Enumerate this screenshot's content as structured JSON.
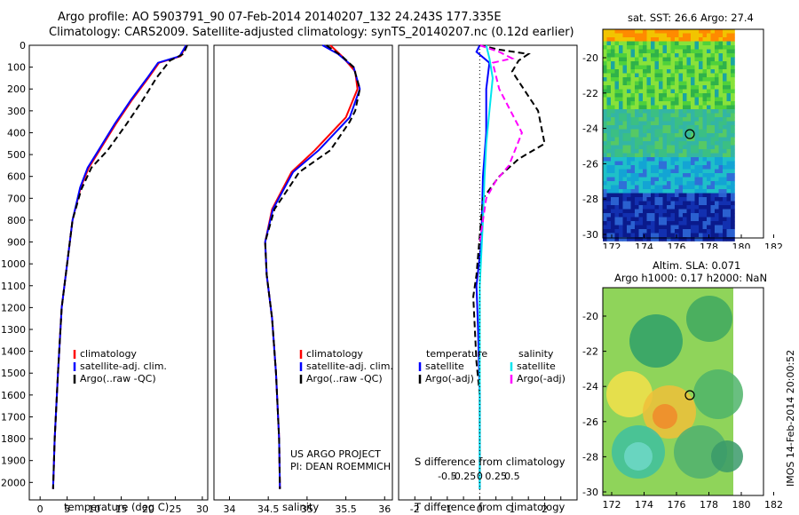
{
  "header": {
    "line1": "Argo profile: AO 5903791_90 07-Feb-2014 20140207_132 24.243S 177.335E",
    "line2": "Climatology: CARS2009. Satellite-adjusted climatology: synTS_20140207.nc (0.12d earlier)"
  },
  "colors": {
    "climatology": "#ff0000",
    "satellite": "#0000ff",
    "argo": "#000000",
    "sat_salt": "#00e5ee",
    "argo_salt": "#ff00ff"
  },
  "depth_axis": {
    "ticks": [
      0,
      100,
      200,
      300,
      400,
      500,
      600,
      700,
      800,
      900,
      1000,
      1100,
      1200,
      1300,
      1400,
      1500,
      1600,
      1700,
      1800,
      1900,
      2000
    ],
    "ylim": [
      0,
      2080
    ]
  },
  "credit": {
    "line1": "US ARGO PROJECT",
    "line2": "PI: DEAN ROEMMICH"
  },
  "footer": {
    "timestamp": "IMOS 14-Feb-2014 20:00:52"
  },
  "chart_data": [
    {
      "type": "line",
      "xlabel": "temperature (deg C)",
      "xlim": [
        -2,
        31
      ],
      "xticks": [
        0,
        5,
        10,
        15,
        20,
        25,
        30
      ],
      "legend": {
        "position": "bottom-center",
        "entries": [
          "climatology",
          "satellite-adj. clim.",
          "Argo(..raw -QC)"
        ]
      },
      "series": [
        {
          "name": "climatology",
          "color": "red",
          "points": [
            [
              27,
              0
            ],
            [
              26,
              50
            ],
            [
              22,
              80
            ],
            [
              20,
              150
            ],
            [
              17,
              250
            ],
            [
              14,
              360
            ],
            [
              11,
              480
            ],
            [
              9,
              560
            ],
            [
              7.5,
              650
            ],
            [
              6,
              800
            ],
            [
              5,
              1000
            ],
            [
              4,
              1200
            ],
            [
              3.3,
              1500
            ],
            [
              2.7,
              1800
            ],
            [
              2.4,
              2030
            ]
          ]
        },
        {
          "name": "satellite-adj. clim.",
          "color": "blue",
          "points": [
            [
              27,
              0
            ],
            [
              25.8,
              50
            ],
            [
              21.8,
              80
            ],
            [
              19.8,
              150
            ],
            [
              16.8,
              250
            ],
            [
              13.8,
              360
            ],
            [
              10.8,
              480
            ],
            [
              8.8,
              560
            ],
            [
              7.4,
              650
            ],
            [
              6,
              800
            ],
            [
              5,
              1000
            ],
            [
              4,
              1200
            ],
            [
              3.3,
              1500
            ],
            [
              2.7,
              1800
            ],
            [
              2.4,
              2030
            ]
          ]
        },
        {
          "name": "Argo(..raw -QC)",
          "color": "black",
          "dashed": true,
          "points": [
            [
              27.2,
              0
            ],
            [
              26.5,
              40
            ],
            [
              24,
              70
            ],
            [
              21.5,
              150
            ],
            [
              19,
              250
            ],
            [
              16,
              360
            ],
            [
              12.5,
              480
            ],
            [
              9.5,
              560
            ],
            [
              7.6,
              660
            ],
            [
              6,
              800
            ],
            [
              5,
              1000
            ],
            [
              4,
              1200
            ],
            [
              3.3,
              1500
            ],
            [
              2.7,
              1800
            ],
            [
              2.4,
              2030
            ]
          ]
        }
      ]
    },
    {
      "type": "line",
      "xlabel": "salinity",
      "xlim": [
        33.8,
        36.1
      ],
      "xticks": [
        34,
        34.5,
        35,
        35.5,
        36
      ],
      "legend": {
        "position": "bottom-center",
        "entries": [
          "climatology",
          "satellite-adj. clim.",
          "Argo(..raw -QC)"
        ]
      },
      "series": [
        {
          "name": "climatology",
          "color": "red",
          "points": [
            [
              35.3,
              0
            ],
            [
              35.45,
              50
            ],
            [
              35.62,
              120
            ],
            [
              35.65,
              200
            ],
            [
              35.5,
              330
            ],
            [
              35.1,
              480
            ],
            [
              34.8,
              580
            ],
            [
              34.55,
              750
            ],
            [
              34.46,
              900
            ],
            [
              34.48,
              1050
            ],
            [
              34.55,
              1250
            ],
            [
              34.6,
              1500
            ],
            [
              34.64,
              1800
            ],
            [
              34.65,
              2030
            ]
          ]
        },
        {
          "name": "satellite-adj. clim.",
          "color": "blue",
          "points": [
            [
              35.2,
              0
            ],
            [
              35.4,
              40
            ],
            [
              35.6,
              100
            ],
            [
              35.68,
              200
            ],
            [
              35.55,
              330
            ],
            [
              35.15,
              480
            ],
            [
              34.82,
              580
            ],
            [
              34.56,
              750
            ],
            [
              34.46,
              900
            ],
            [
              34.48,
              1050
            ],
            [
              34.55,
              1250
            ],
            [
              34.6,
              1500
            ],
            [
              34.64,
              1800
            ],
            [
              34.65,
              2030
            ]
          ]
        },
        {
          "name": "Argo(..raw -QC)",
          "color": "black",
          "dashed": true,
          "points": [
            [
              35.25,
              0
            ],
            [
              35.45,
              50
            ],
            [
              35.6,
              100
            ],
            [
              35.68,
              200
            ],
            [
              35.62,
              300
            ],
            [
              35.55,
              350
            ],
            [
              35.3,
              480
            ],
            [
              34.9,
              580
            ],
            [
              34.58,
              750
            ],
            [
              34.46,
              900
            ],
            [
              34.48,
              1050
            ],
            [
              34.55,
              1250
            ],
            [
              34.6,
              1500
            ],
            [
              34.64,
              1800
            ],
            [
              34.65,
              2030
            ]
          ]
        }
      ]
    },
    {
      "type": "line",
      "xlabel": "T difference from climatology",
      "x2label": "S difference from climatology",
      "xlim": [
        -2.5,
        3
      ],
      "xticks": [
        -2,
        -1.5,
        -1,
        -0.5,
        0,
        0.5,
        1,
        1.5,
        2,
        2.5
      ],
      "xtick_labels_shown": [
        "-2",
        "-1",
        "0",
        "1",
        "2"
      ],
      "x2tick_labels": [
        "-0.5",
        "-0.25",
        "0",
        "0.25",
        "0.5"
      ],
      "legend": {
        "position": "bottom-center",
        "headers": [
          "temperature",
          "salinity"
        ],
        "entries": [
          "satellite",
          "Argo(-adj)",
          "satellite",
          "Argo(-adj)"
        ]
      },
      "series": [
        {
          "name": "satellite",
          "color": "blue",
          "points": [
            [
              0,
              0
            ],
            [
              -0.1,
              30
            ],
            [
              0.3,
              80
            ],
            [
              0.2,
              200
            ],
            [
              0.2,
              400
            ],
            [
              0.1,
              600
            ],
            [
              0.05,
              900
            ],
            [
              -0.1,
              1100
            ],
            [
              -0.05,
              1300
            ],
            [
              0,
              1600
            ],
            [
              0,
              2030
            ]
          ]
        },
        {
          "name": "Argo(-adj)",
          "color": "black",
          "dashed": true,
          "points": [
            [
              0,
              0
            ],
            [
              0.6,
              20
            ],
            [
              1.5,
              40
            ],
            [
              1.2,
              70
            ],
            [
              1,
              120
            ],
            [
              1.8,
              300
            ],
            [
              2,
              450
            ],
            [
              1.2,
              520
            ],
            [
              0.6,
              600
            ],
            [
              0.1,
              700
            ],
            [
              -0.1,
              1050
            ],
            [
              -0.2,
              1150
            ],
            [
              -0.1,
              1450
            ],
            [
              0,
              1600
            ],
            [
              0,
              2030
            ]
          ]
        },
        {
          "name": "satellite",
          "color": "cyan",
          "points": [
            [
              0.2,
              0
            ],
            [
              0.3,
              60
            ],
            [
              0.4,
              150
            ],
            [
              0.3,
              300
            ],
            [
              0.2,
              450
            ],
            [
              0.15,
              600
            ],
            [
              0.1,
              800
            ],
            [
              0,
              1100
            ],
            [
              0,
              1400
            ],
            [
              0,
              2030
            ]
          ]
        },
        {
          "name": "Argo(-adj)",
          "color": "magenta",
          "dashed": true,
          "points": [
            [
              0,
              0
            ],
            [
              0.6,
              30
            ],
            [
              1.0,
              60
            ],
            [
              0.4,
              80
            ],
            [
              0.6,
              200
            ],
            [
              1.3,
              400
            ],
            [
              0.9,
              550
            ],
            [
              0.5,
              620
            ],
            [
              0.2,
              700
            ],
            [
              0,
              900
            ]
          ]
        }
      ]
    }
  ],
  "maps": [
    {
      "title": "sat. SST: 26.6 Argo: 27.4",
      "xticks": [
        "172",
        "174",
        "176",
        "178",
        "180",
        "182"
      ],
      "yticks": [
        "-20",
        "-22",
        "-24",
        "-26",
        "-28",
        "-30"
      ],
      "type": "heatmap"
    },
    {
      "title_line1": "Altim. SLA: 0.071",
      "title_line2": "Argo h1000: 0.17 h2000: NaN",
      "xticks": [
        "172",
        "174",
        "176",
        "178",
        "180",
        "182"
      ],
      "yticks": [
        "-20",
        "-22",
        "-24",
        "-26",
        "-28",
        "-30"
      ],
      "type": "heatmap"
    }
  ]
}
